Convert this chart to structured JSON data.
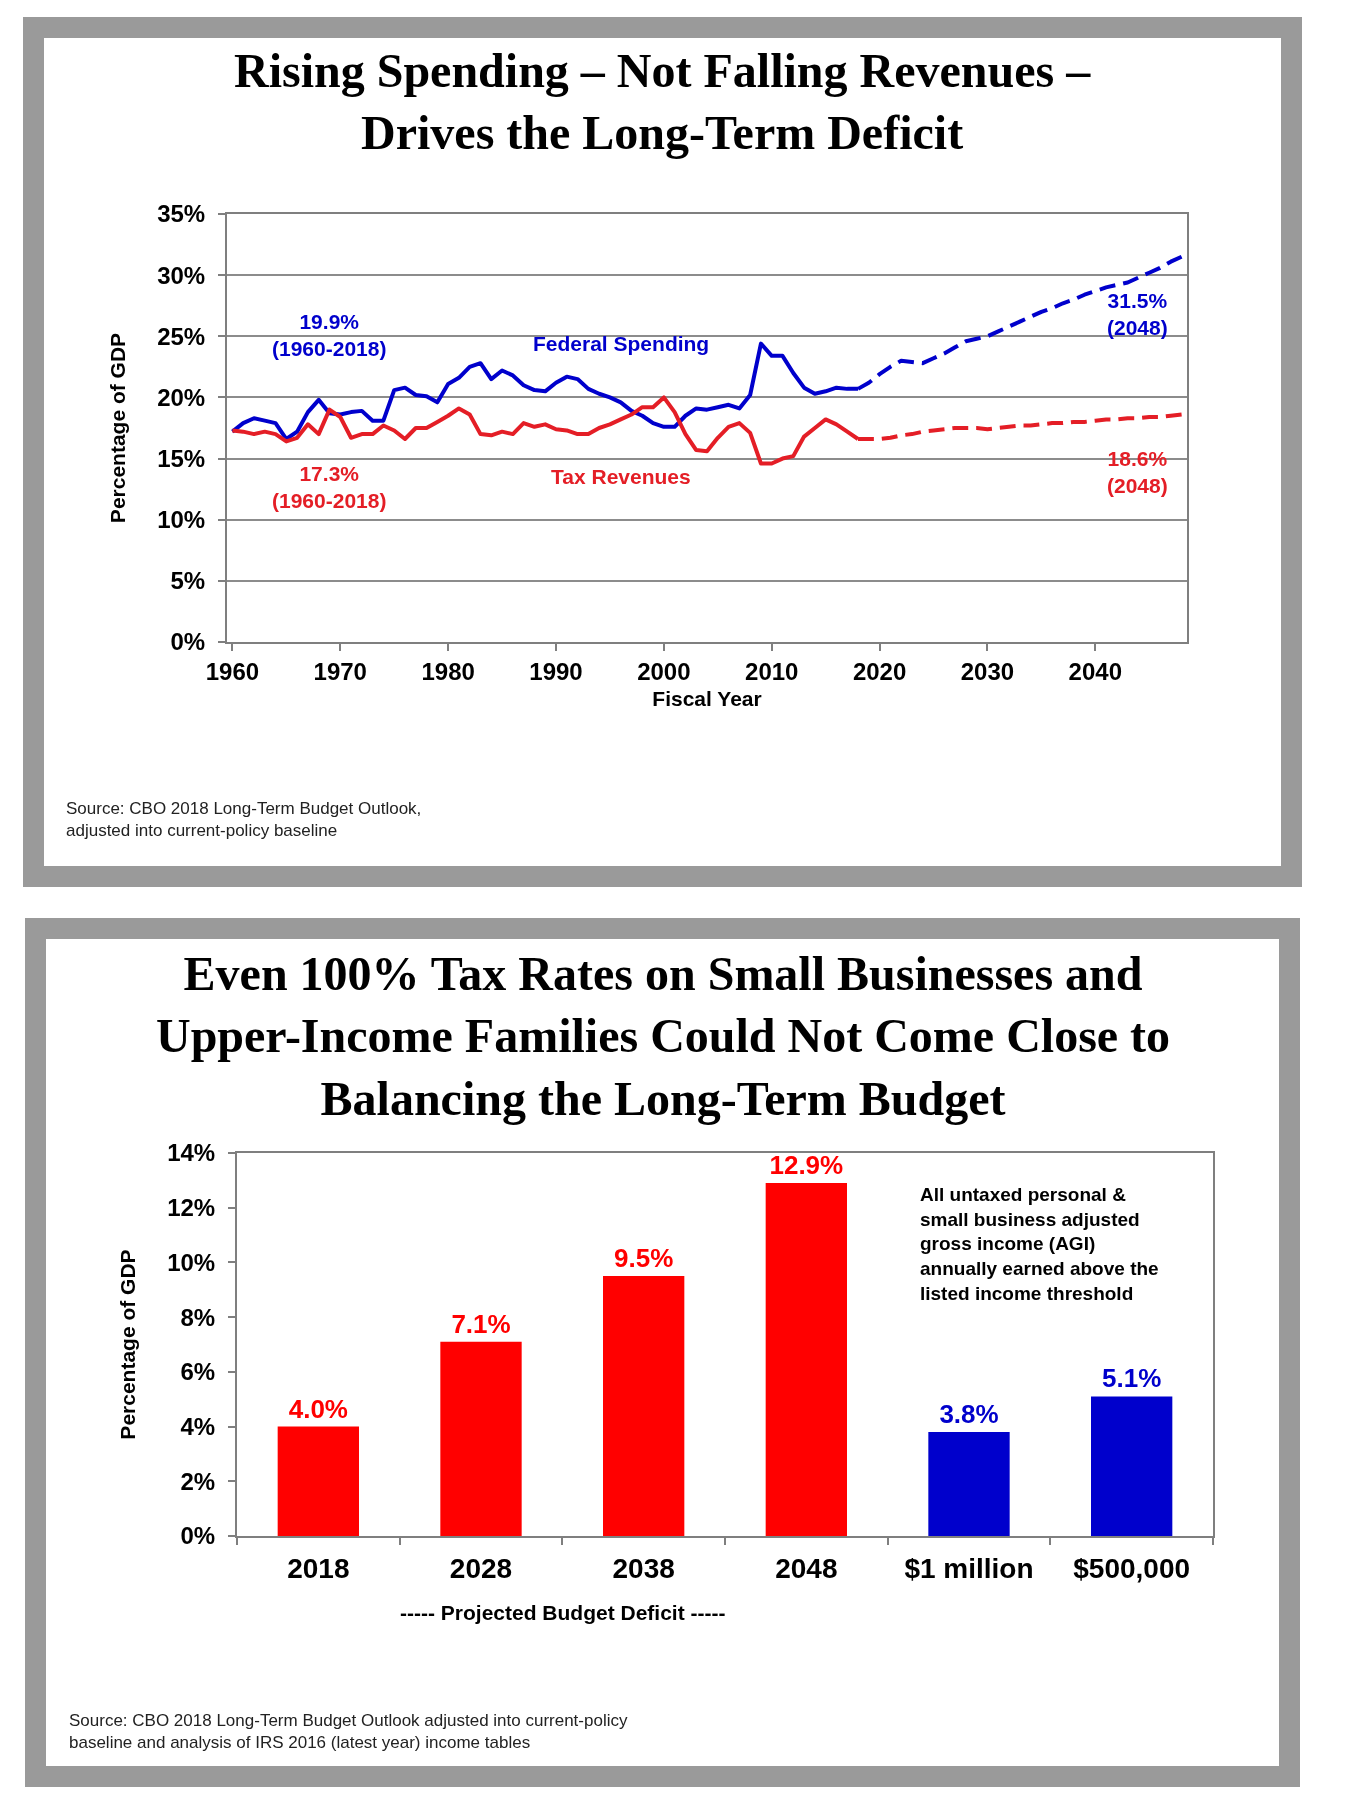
{
  "chart_data": [
    {
      "type": "line",
      "title": "Rising Spending – Not Falling Revenues –\nDrives the Long-Term Deficit",
      "xlabel": "Fiscal Year",
      "ylabel": "Percentage of GDP",
      "xlim": [
        1959.5,
        2048.5
      ],
      "xticks": [
        1960,
        1970,
        1980,
        1990,
        2000,
        2010,
        2020,
        2030,
        2040
      ],
      "ylim": [
        0,
        35
      ],
      "yticks": [
        {
          "value": 0,
          "label": "0%"
        },
        {
          "value": 5,
          "label": "5%"
        },
        {
          "value": 10,
          "label": "10%"
        },
        {
          "value": 15,
          "label": "15%"
        },
        {
          "value": 20,
          "label": "20%"
        },
        {
          "value": 25,
          "label": "25%"
        },
        {
          "value": 30,
          "label": "30%"
        },
        {
          "value": 35,
          "label": "35%"
        }
      ],
      "grid": "y",
      "legend": false,
      "series": [
        {
          "name": "Federal Spending",
          "color": "#0000cc",
          "x": [
            1960,
            1961,
            1962,
            1963,
            1964,
            1965,
            1966,
            1967,
            1968,
            1969,
            1970,
            1971,
            1972,
            1973,
            1974,
            1975,
            1976,
            1977,
            1978,
            1979,
            1980,
            1981,
            1982,
            1983,
            1984,
            1985,
            1986,
            1987,
            1988,
            1989,
            1990,
            1991,
            1992,
            1993,
            1994,
            1995,
            1996,
            1997,
            1998,
            1999,
            2000,
            2001,
            2002,
            2003,
            2004,
            2005,
            2006,
            2007,
            2008,
            2009,
            2010,
            2011,
            2012,
            2013,
            2014,
            2015,
            2016,
            2017,
            2018
          ],
          "values": [
            17.2,
            17.9,
            18.3,
            18.1,
            17.9,
            16.6,
            17.2,
            18.8,
            19.8,
            18.7,
            18.6,
            18.8,
            18.9,
            18.1,
            18.1,
            20.6,
            20.8,
            20.2,
            20.1,
            19.6,
            21.1,
            21.6,
            22.5,
            22.8,
            21.5,
            22.2,
            21.8,
            21.0,
            20.6,
            20.5,
            21.2,
            21.7,
            21.5,
            20.7,
            20.3,
            20.0,
            19.6,
            18.9,
            18.5,
            17.9,
            17.6,
            17.6,
            18.5,
            19.1,
            19.0,
            19.2,
            19.4,
            19.1,
            20.2,
            24.4,
            23.4,
            23.4,
            22.0,
            20.8,
            20.3,
            20.5,
            20.8,
            20.7,
            20.7
          ]
        },
        {
          "color": "#0000cc",
          "line_style": "dashed",
          "x": [
            2018,
            2019,
            2020,
            2021,
            2022,
            2023,
            2024,
            2025,
            2026,
            2027,
            2028,
            2029,
            2030,
            2031,
            2032,
            2033,
            2034,
            2035,
            2036,
            2037,
            2038,
            2039,
            2040,
            2041,
            2042,
            2043,
            2044,
            2045,
            2046,
            2047,
            2048
          ],
          "values": [
            20.7,
            21.2,
            21.9,
            22.5,
            23.0,
            22.9,
            22.8,
            23.2,
            23.6,
            24.1,
            24.6,
            24.8,
            25.0,
            25.4,
            25.8,
            26.2,
            26.6,
            27.0,
            27.3,
            27.7,
            28.0,
            28.4,
            28.7,
            29.0,
            29.2,
            29.4,
            29.8,
            30.2,
            30.6,
            31.1,
            31.5
          ]
        },
        {
          "name": "Tax Revenues",
          "color": "#e41e26",
          "x": [
            1960,
            1961,
            1962,
            1963,
            1964,
            1965,
            1966,
            1967,
            1968,
            1969,
            1970,
            1971,
            1972,
            1973,
            1974,
            1975,
            1976,
            1977,
            1978,
            1979,
            1980,
            1981,
            1982,
            1983,
            1984,
            1985,
            1986,
            1987,
            1988,
            1989,
            1990,
            1991,
            1992,
            1993,
            1994,
            1995,
            1996,
            1997,
            1998,
            1999,
            2000,
            2001,
            2002,
            2003,
            2004,
            2005,
            2006,
            2007,
            2008,
            2009,
            2010,
            2011,
            2012,
            2013,
            2014,
            2015,
            2016,
            2017,
            2018
          ],
          "values": [
            17.3,
            17.2,
            17.0,
            17.2,
            17.0,
            16.4,
            16.7,
            17.8,
            17.0,
            19.0,
            18.4,
            16.7,
            17.0,
            17.0,
            17.7,
            17.3,
            16.6,
            17.5,
            17.5,
            18.0,
            18.5,
            19.1,
            18.6,
            17.0,
            16.9,
            17.2,
            17.0,
            17.9,
            17.6,
            17.8,
            17.4,
            17.3,
            17.0,
            17.0,
            17.5,
            17.8,
            18.2,
            18.6,
            19.2,
            19.2,
            20.0,
            18.8,
            17.0,
            15.7,
            15.6,
            16.7,
            17.6,
            17.9,
            17.1,
            14.6,
            14.6,
            15.0,
            15.2,
            16.8,
            17.5,
            18.2,
            17.8,
            17.2,
            16.6
          ]
        },
        {
          "color": "#e41e26",
          "line_style": "dashed",
          "x": [
            2018,
            2019,
            2020,
            2021,
            2022,
            2023,
            2024,
            2025,
            2026,
            2027,
            2028,
            2029,
            2030,
            2031,
            2032,
            2033,
            2034,
            2035,
            2036,
            2037,
            2038,
            2039,
            2040,
            2041,
            2042,
            2043,
            2044,
            2045,
            2046,
            2047,
            2048
          ],
          "values": [
            16.6,
            16.6,
            16.6,
            16.7,
            16.9,
            17.0,
            17.2,
            17.3,
            17.4,
            17.5,
            17.5,
            17.5,
            17.4,
            17.5,
            17.6,
            17.7,
            17.7,
            17.8,
            17.9,
            17.9,
            18.0,
            18.0,
            18.1,
            18.2,
            18.2,
            18.3,
            18.3,
            18.4,
            18.4,
            18.5,
            18.6
          ]
        }
      ],
      "annotations": [
        "19.9%\n(1960-2018)",
        "17.3%\n(1960-2018)",
        {
          "text": "31.5%\n(2048)",
          "x": 2048,
          "y": 31.5
        },
        {
          "text": "18.6%\n(2048)",
          "x": 2048,
          "y": 18.6
        },
        "Source: CBO 2018 Long-Term Budget Outlook,\nadjusted into current-policy baseline"
      ]
    },
    {
      "type": "bar",
      "title": "Even 100% Tax Rates on Small Businesses and\nUpper-Income Families Could Not Come Close to\nBalancing the Long-Term Budget",
      "xlabel": "----- Projected Budget Deficit -----",
      "ylabel": "Percentage of GDP",
      "categories": [
        "2018",
        "2028",
        "2038",
        "2048",
        "$1 million",
        "$500,000"
      ],
      "values": [
        4.0,
        7.1,
        9.5,
        12.9,
        3.8,
        5.1
      ],
      "colors": [
        "#ff0000",
        "#ff0000",
        "#ff0000",
        "#ff0000",
        "#0000cc",
        "#0000cc"
      ],
      "value_labels": [
        "4.0%",
        "7.1%",
        "9.5%",
        "12.9%",
        "3.8%",
        "5.1%"
      ],
      "ylim": [
        0,
        14
      ],
      "yticks": [
        {
          "value": 0,
          "label": "0%"
        },
        {
          "value": 2,
          "label": "2%"
        },
        {
          "value": 4,
          "label": "4%"
        },
        {
          "value": 6,
          "label": "6%"
        },
        {
          "value": 8,
          "label": "8%"
        },
        {
          "value": 10,
          "label": "10%"
        },
        {
          "value": 12,
          "label": "12%"
        },
        {
          "value": 14,
          "label": "14%"
        }
      ],
      "legend": false,
      "annotations": [
        "All untaxed personal &\nsmall business adjusted\ngross income (AGI)\nannually earned above the\nlisted income threshold",
        "Source: CBO 2018 Long-Term Budget Outlook adjusted into current-policy\nbaseline and analysis of IRS 2016 (latest year) income tables"
      ]
    }
  ]
}
